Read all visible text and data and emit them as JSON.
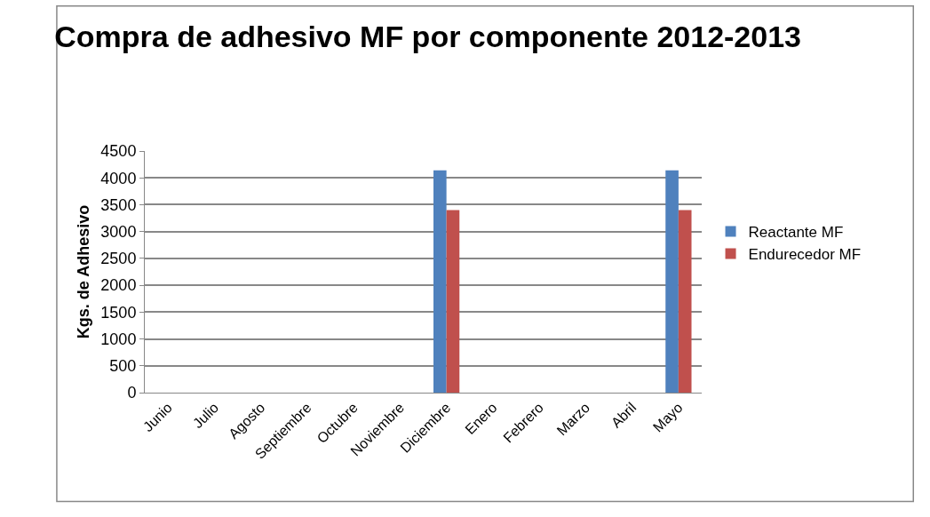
{
  "chart_data": {
    "type": "bar",
    "title": "Compra de adhesivo MF por componente 2012-2013",
    "ylabel": "Kgs. de Adhesivo",
    "categories": [
      "Junio",
      "Julio",
      "Agosto",
      "Septiembre",
      "Octubre",
      "Noviembre",
      "Diciembre",
      "Enero",
      "Febrero",
      "Marzo",
      "Abril",
      "Mayo"
    ],
    "series": [
      {
        "name": "Reactante MF",
        "color": "#4f81bd",
        "values": [
          null,
          null,
          null,
          null,
          null,
          null,
          4140,
          null,
          null,
          null,
          null,
          4140
        ]
      },
      {
        "name": "Endurecedor MF",
        "color": "#c0504d",
        "values": [
          null,
          null,
          null,
          null,
          null,
          null,
          3400,
          null,
          null,
          null,
          null,
          3400
        ]
      }
    ],
    "ylim": [
      0,
      4500
    ],
    "yticks": [
      0,
      500,
      1000,
      1500,
      2000,
      2500,
      3000,
      3500,
      4000,
      4500
    ],
    "grid": "y",
    "legend": "right"
  }
}
